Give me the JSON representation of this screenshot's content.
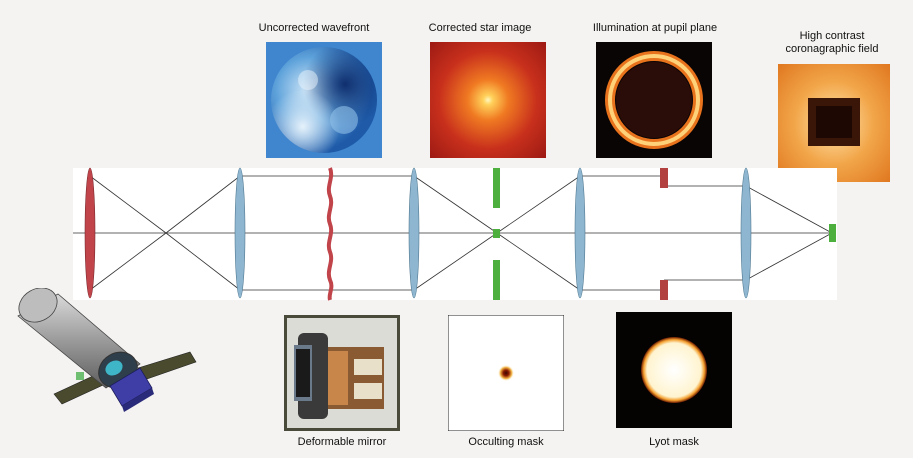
{
  "labels": {
    "uncorrected_wavefront": "Uncorrected wavefront",
    "corrected_star_image": "Corrected star image",
    "illumination_pupil": "Illumination at pupil plane",
    "high_contrast_line1": "High contrast",
    "high_contrast_line2": "coronagraphic field",
    "deformable_mirror": "Deformable mirror",
    "occulting_mask": "Occulting mask",
    "lyot_mask": "Lyot mask"
  },
  "colors": {
    "background": "#f4f3f1",
    "bench": "#ffffff",
    "lens_red": "#c0444a",
    "lens_blue": "#8fb6d0",
    "mask_green": "#4caf3e",
    "lyot_stop": "#b2403f",
    "ray": "#333333"
  }
}
